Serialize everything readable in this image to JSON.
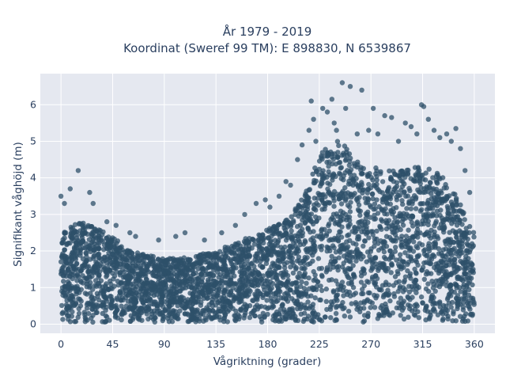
{
  "chart_data": {
    "type": "scatter",
    "title": "År 1979 - 2019",
    "subtitle": "Koordinat (Sweref 99 TM): E 898830, N 6539867",
    "xlabel": "Vågriktning (grader)",
    "ylabel": "Signifikant våghöjd (m)",
    "xlim": [
      -18,
      378
    ],
    "ylim": [
      -0.25,
      6.85
    ],
    "xticks": [
      0,
      45,
      90,
      135,
      180,
      225,
      270,
      315,
      360
    ],
    "yticks": [
      0,
      1,
      2,
      3,
      4,
      5,
      6
    ],
    "grid": true,
    "legend": "none",
    "colors": {
      "marker": "#2d5069",
      "plot_bg": "#e5e8f0",
      "grid": "#ffffff",
      "text": "#2a3f5f"
    },
    "envelope": {
      "description": "approximate upper extent of the dense point cloud per direction",
      "x": [
        0,
        10,
        20,
        30,
        45,
        60,
        75,
        90,
        105,
        120,
        135,
        150,
        165,
        180,
        195,
        205,
        215,
        225,
        235,
        245,
        255,
        265,
        275,
        285,
        295,
        305,
        315,
        325,
        335,
        345,
        352,
        360
      ],
      "ymax": [
        2.6,
        2.7,
        2.8,
        2.7,
        2.4,
        2.0,
        1.9,
        1.8,
        1.8,
        1.9,
        2.0,
        2.2,
        2.4,
        2.6,
        2.8,
        3.2,
        3.8,
        4.6,
        5.0,
        5.0,
        4.6,
        4.2,
        4.3,
        4.2,
        4.2,
        4.3,
        4.3,
        4.2,
        4.0,
        3.5,
        3.0,
        2.5
      ]
    },
    "outliers": {
      "x": [
        0,
        3,
        8,
        15,
        25,
        28,
        40,
        48,
        60,
        65,
        85,
        100,
        108,
        125,
        140,
        152,
        160,
        170,
        178,
        182,
        190,
        196,
        200,
        206,
        210,
        216,
        218,
        220,
        222,
        228,
        232,
        236,
        238,
        240,
        245,
        248,
        252,
        258,
        262,
        268,
        272,
        276,
        282,
        288,
        294,
        300,
        305,
        310,
        314,
        316,
        320,
        325,
        330,
        336,
        340,
        344,
        348,
        352,
        356
      ],
      "y": [
        3.5,
        3.3,
        3.7,
        4.2,
        3.6,
        3.3,
        2.8,
        2.7,
        2.5,
        2.4,
        2.3,
        2.4,
        2.5,
        2.3,
        2.5,
        2.7,
        3.0,
        3.3,
        3.4,
        3.2,
        3.5,
        3.9,
        3.8,
        4.5,
        4.9,
        5.3,
        6.1,
        5.6,
        5.0,
        5.9,
        5.8,
        6.15,
        5.5,
        5.3,
        6.6,
        5.9,
        6.5,
        5.2,
        6.4,
        5.3,
        5.9,
        5.2,
        5.7,
        5.65,
        5.0,
        5.5,
        5.4,
        5.2,
        6.0,
        5.95,
        5.6,
        5.3,
        5.1,
        5.2,
        5.0,
        5.35,
        4.8,
        4.2,
        3.6
      ]
    }
  }
}
